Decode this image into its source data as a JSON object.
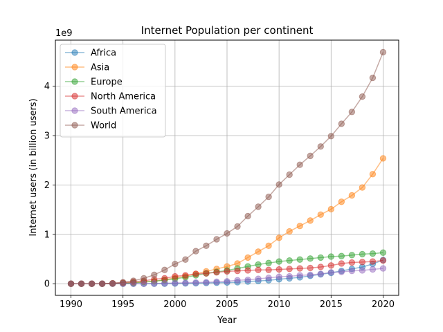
{
  "chart_data": {
    "type": "line",
    "title": "Internet Population per continent",
    "xlabel": "Year",
    "ylabel": "Internet users (in billion users)",
    "y_offset_label": "1e9",
    "x": [
      1990,
      1991,
      1992,
      1993,
      1994,
      1995,
      1996,
      1997,
      1998,
      1999,
      2000,
      2001,
      2002,
      2003,
      2004,
      2005,
      2006,
      2007,
      2008,
      2009,
      2010,
      2011,
      2012,
      2013,
      2014,
      2015,
      2016,
      2017,
      2018,
      2019,
      2020
    ],
    "xlim": [
      1988.5,
      2021.5
    ],
    "ylim": [
      -0.235,
      4.935
    ],
    "x_ticks": [
      1990,
      1995,
      2000,
      2005,
      2010,
      2015,
      2020
    ],
    "y_ticks": [
      0,
      1,
      2,
      3,
      4
    ],
    "grid": true,
    "legend_position": "top-left",
    "series": [
      {
        "name": "Africa",
        "color": "#1f77b4",
        "values": [
          0,
          0,
          0,
          0,
          0,
          0,
          0,
          0,
          0,
          0,
          0.004,
          0.006,
          0.01,
          0.015,
          0.02,
          0.025,
          0.03,
          0.045,
          0.055,
          0.07,
          0.09,
          0.11,
          0.13,
          0.16,
          0.19,
          0.22,
          0.26,
          0.3,
          0.34,
          0.4,
          0.48
        ]
      },
      {
        "name": "Asia",
        "color": "#ff7f0e",
        "values": [
          0,
          0,
          0,
          0,
          0,
          0.01,
          0.02,
          0.035,
          0.05,
          0.08,
          0.12,
          0.15,
          0.2,
          0.25,
          0.3,
          0.35,
          0.41,
          0.53,
          0.65,
          0.77,
          0.93,
          1.06,
          1.17,
          1.28,
          1.4,
          1.51,
          1.66,
          1.79,
          1.95,
          2.22,
          2.54
        ]
      },
      {
        "name": "Europe",
        "color": "#2ca02c",
        "values": [
          0,
          0,
          0,
          0,
          0.005,
          0.01,
          0.02,
          0.035,
          0.05,
          0.075,
          0.1,
          0.13,
          0.17,
          0.21,
          0.24,
          0.27,
          0.31,
          0.35,
          0.39,
          0.42,
          0.45,
          0.47,
          0.49,
          0.51,
          0.53,
          0.55,
          0.56,
          0.58,
          0.6,
          0.61,
          0.63
        ]
      },
      {
        "name": "North America",
        "color": "#d62728",
        "values": [
          0,
          0,
          0,
          0,
          0.01,
          0.02,
          0.04,
          0.06,
          0.09,
          0.11,
          0.15,
          0.17,
          0.2,
          0.21,
          0.23,
          0.25,
          0.26,
          0.27,
          0.28,
          0.28,
          0.29,
          0.3,
          0.31,
          0.32,
          0.34,
          0.37,
          0.41,
          0.43,
          0.44,
          0.45,
          0.47
        ]
      },
      {
        "name": "South America",
        "color": "#9467bd",
        "values": [
          0,
          0,
          0,
          0,
          0,
          0,
          0,
          0,
          0.005,
          0.01,
          0.015,
          0.02,
          0.025,
          0.03,
          0.04,
          0.05,
          0.07,
          0.08,
          0.1,
          0.12,
          0.14,
          0.15,
          0.17,
          0.18,
          0.2,
          0.23,
          0.24,
          0.26,
          0.27,
          0.29,
          0.31
        ]
      },
      {
        "name": "World",
        "color": "#8c564b",
        "values": [
          0,
          0,
          0,
          0,
          0.01,
          0.03,
          0.06,
          0.11,
          0.18,
          0.28,
          0.4,
          0.49,
          0.66,
          0.77,
          0.9,
          1.02,
          1.16,
          1.37,
          1.56,
          1.76,
          2.01,
          2.21,
          2.41,
          2.59,
          2.78,
          2.99,
          3.24,
          3.48,
          3.79,
          4.17,
          4.69
        ]
      }
    ]
  }
}
